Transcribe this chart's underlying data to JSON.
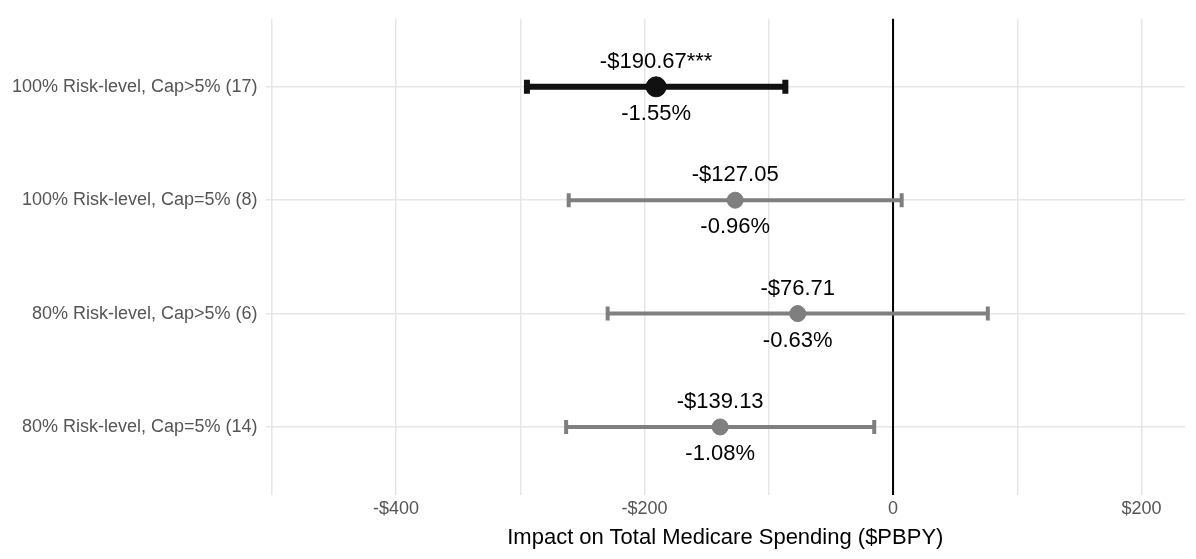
{
  "chart_data": {
    "type": "scatter",
    "orientation": "horizontal",
    "xlabel": "Impact on Total Medicare Spending ($PBPY)",
    "categories": [
      "100% Risk-level, Cap>5% (17)",
      "100% Risk-level, Cap=5% (8)",
      "80% Risk-level, Cap>5% (6)",
      "80% Risk-level, Cap=5% (14)"
    ],
    "values": [
      -190.67,
      -127.05,
      -76.71,
      -139.13
    ],
    "colors": [
      "#111111",
      "#7f7f7f",
      "#7f7f7f",
      "#7f7f7f"
    ],
    "errors": [
      104,
      134,
      153,
      124
    ],
    "value_labels": [
      "-$190.67***",
      "-$127.05",
      "-$76.71",
      "-$139.13"
    ],
    "annotations": [
      {
        "text": "-1.55%",
        "x": -190.67,
        "y": "100% Risk-level, Cap>5% (17)"
      },
      {
        "text": "-0.96%",
        "x": -127.05,
        "y": "100% Risk-level, Cap=5% (8)"
      },
      {
        "text": "-0.63%",
        "x": -76.71,
        "y": "80% Risk-level, Cap>5% (6)"
      },
      {
        "text": "-1.08%",
        "x": -139.13,
        "y": "80% Risk-level, Cap=5% (14)"
      }
    ],
    "ref_lines": [
      {
        "axis": "x",
        "value": 0,
        "color": "#000000"
      }
    ],
    "xlim": [
      -505,
      235
    ],
    "xticks": [
      {
        "value": -500,
        "label": null
      },
      {
        "value": -400,
        "label": "-$400"
      },
      {
        "value": -300,
        "label": null
      },
      {
        "value": -200,
        "label": "-$200"
      },
      {
        "value": -100,
        "label": null
      },
      0,
      {
        "value": 100,
        "label": null
      },
      {
        "value": 200,
        "label": "$200"
      }
    ],
    "grid": true,
    "marker": "circle",
    "legend": false
  }
}
